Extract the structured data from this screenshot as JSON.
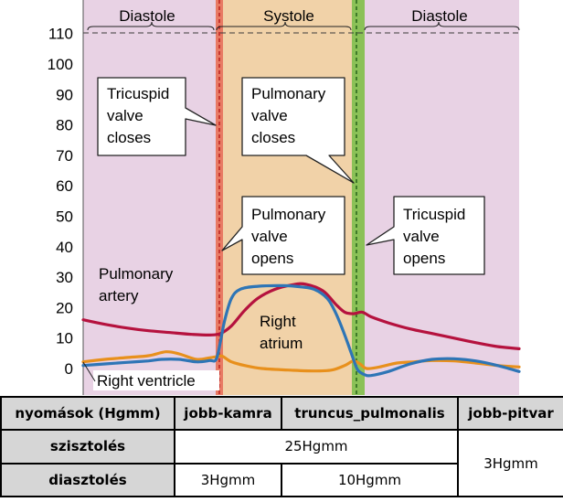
{
  "chart_data": {
    "type": "line",
    "ylim": [
      -5,
      115
    ],
    "y_ticks": [
      0,
      10,
      20,
      30,
      40,
      50,
      60,
      70,
      80,
      90,
      100,
      110
    ],
    "phases": [
      "Diastole",
      "Systole",
      "Diastole"
    ],
    "x_range": [
      0,
      100
    ],
    "tricuspid_close_x": 31.2,
    "pulmonary_close_x": 61.2,
    "colors": {
      "diastole_bg": "#e8d2e4",
      "systole_bg": "#f1d2a8",
      "tricuspid_band": "#e87a64",
      "pulmonary_band": "#8bc157",
      "pulmonary_artery": "#b5123e",
      "right_ventricle": "#2e75b6",
      "right_atrium": "#e8901c",
      "reference_line": "#3a3a3a"
    },
    "reference_line_y": 110,
    "series": [
      {
        "name": "Pulmonary artery",
        "color": "#b5123e",
        "points": [
          [
            0,
            16
          ],
          [
            5,
            14.5
          ],
          [
            10,
            13.3
          ],
          [
            15,
            12.4
          ],
          [
            20,
            11.8
          ],
          [
            25,
            11.2
          ],
          [
            29,
            11
          ],
          [
            31.5,
            11.5
          ],
          [
            34,
            14
          ],
          [
            37,
            19
          ],
          [
            40,
            23
          ],
          [
            44,
            26
          ],
          [
            48,
            27.5
          ],
          [
            51,
            27.7
          ],
          [
            55,
            25.5
          ],
          [
            58,
            21
          ],
          [
            60,
            18.5
          ],
          [
            62,
            18
          ],
          [
            64,
            18.5
          ],
          [
            66,
            17
          ],
          [
            70,
            15
          ],
          [
            75,
            13
          ],
          [
            80,
            11.5
          ],
          [
            85,
            10
          ],
          [
            90,
            8.5
          ],
          [
            95,
            7.2
          ],
          [
            100,
            6.5
          ]
        ]
      },
      {
        "name": "Right ventricle",
        "color": "#2e75b6",
        "points": [
          [
            0,
            1
          ],
          [
            5,
            1.5
          ],
          [
            10,
            2
          ],
          [
            15,
            2.5
          ],
          [
            18,
            3
          ],
          [
            22,
            3
          ],
          [
            26,
            2.2
          ],
          [
            29,
            2.6
          ],
          [
            30.5,
            3
          ],
          [
            31.5,
            9
          ],
          [
            32.5,
            16
          ],
          [
            34,
            23
          ],
          [
            36,
            26
          ],
          [
            40,
            27
          ],
          [
            46,
            27.2
          ],
          [
            50,
            26.8
          ],
          [
            53,
            26
          ],
          [
            56,
            23
          ],
          [
            58,
            18
          ],
          [
            60,
            11
          ],
          [
            62,
            3
          ],
          [
            63,
            -0.5
          ],
          [
            64.5,
            -2
          ],
          [
            66,
            -2.3
          ],
          [
            70,
            -1
          ],
          [
            75,
            1.5
          ],
          [
            80,
            3
          ],
          [
            85,
            3.2
          ],
          [
            90,
            2.5
          ],
          [
            95,
            1
          ],
          [
            100,
            -1
          ]
        ]
      },
      {
        "name": "Right atrium",
        "color": "#e8901c",
        "points": [
          [
            0,
            2.2
          ],
          [
            5,
            3
          ],
          [
            10,
            3.6
          ],
          [
            15,
            4.2
          ],
          [
            19,
            5.5
          ],
          [
            22,
            4.8
          ],
          [
            26,
            3
          ],
          [
            29,
            3.5
          ],
          [
            31,
            4
          ],
          [
            32,
            4
          ],
          [
            34,
            2.2
          ],
          [
            37,
            1
          ],
          [
            41,
            0
          ],
          [
            47,
            -0.5
          ],
          [
            53,
            -0.8
          ],
          [
            57,
            -0.5
          ],
          [
            60,
            1
          ],
          [
            62,
            2.5
          ],
          [
            63.5,
            1.5
          ],
          [
            65,
            0
          ],
          [
            68,
            0.5
          ],
          [
            72,
            1.8
          ],
          [
            76,
            2.2
          ],
          [
            80,
            2.6
          ],
          [
            85,
            2.5
          ],
          [
            90,
            1.8
          ],
          [
            95,
            1
          ],
          [
            100,
            0.5
          ]
        ]
      }
    ]
  },
  "labels": {
    "diastole_left": "Diastole",
    "systole": "Systole",
    "diastole_right": "Diastole",
    "pulmonary_artery_1": "Pulmonary",
    "pulmonary_artery_2": "artery",
    "right_atrium_1": "Right",
    "right_atrium_2": "atrium",
    "right_ventricle": "Right ventricle",
    "tricuspid_closes": [
      "Tricuspid",
      "valve",
      "closes"
    ],
    "pulmonary_closes": [
      "Pulmonary",
      "valve",
      "closes"
    ],
    "pulmonary_opens": [
      "Pulmonary",
      "valve",
      "opens"
    ],
    "tricuspid_opens": [
      "Tricuspid",
      "valve",
      "opens"
    ]
  },
  "table": {
    "headers": [
      "nyomások (Hgmm)",
      "jobb-kamra",
      "truncus_pulmonalis",
      "jobb-pitvar"
    ],
    "row1_label": "szisztolés",
    "row1_value": "25Hgmm",
    "row2_label": "diasztolés",
    "row2_rv": "3Hgmm",
    "row2_tp": "10Hgmm",
    "atrium_value": "3Hgmm"
  }
}
